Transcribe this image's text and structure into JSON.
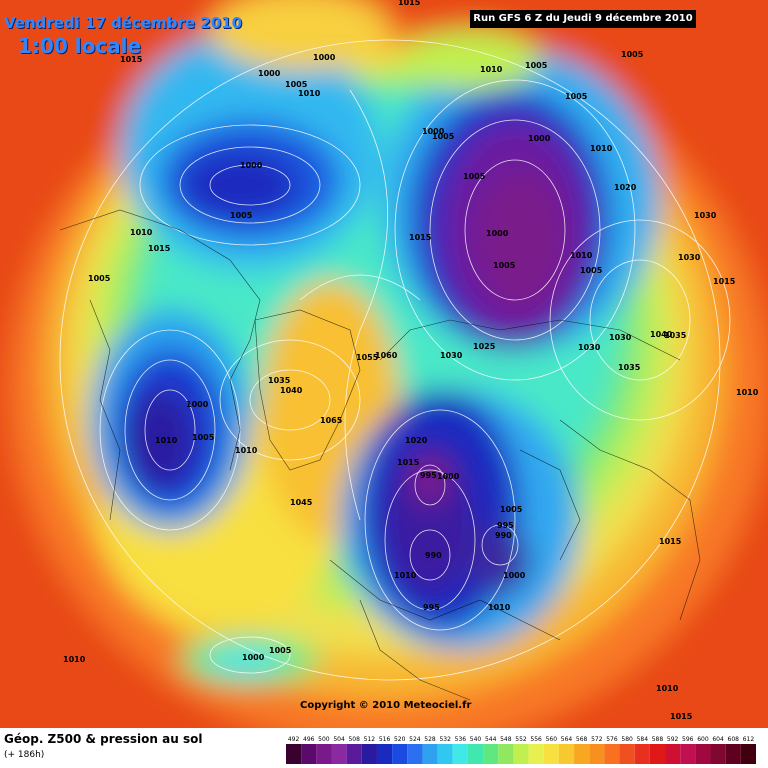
{
  "header": {
    "valid_date": "Vendredi 17 décembre 2010",
    "local_time": "1:00 locale",
    "run_info": "Run GFS 6 Z du Jeudi 9 décembre 2010"
  },
  "copyright": "Copyright © 2010 Meteociel.fr",
  "footer": {
    "title": "Géop. Z500 & pression au sol",
    "subtitle": "(+ 186h)"
  },
  "legend": {
    "labels": [
      "492",
      "496",
      "500",
      "504",
      "508",
      "512",
      "516",
      "520",
      "524",
      "528",
      "532",
      "536",
      "540",
      "544",
      "548",
      "552",
      "556",
      "560",
      "564",
      "568",
      "572",
      "576",
      "580",
      "584",
      "588",
      "592",
      "596",
      "600",
      "604",
      "608",
      "612"
    ],
    "colors": [
      "#3a0030",
      "#5a0a6a",
      "#7a1a8a",
      "#8a2aa0",
      "#5a1a9a",
      "#2a1aa0",
      "#1a2ac0",
      "#1a4ae0",
      "#2a70f0",
      "#30a0f0",
      "#30c8f0",
      "#40e8e8",
      "#40e8b0",
      "#60e880",
      "#90e860",
      "#c0f050",
      "#e8f050",
      "#f8e040",
      "#f8c830",
      "#f8a820",
      "#f89020",
      "#f87020",
      "#f05020",
      "#e83020",
      "#e01818",
      "#d01030",
      "#c01050",
      "#a00840",
      "#800830",
      "#600020",
      "#400010"
    ]
  },
  "pressure_labels": [
    {
      "text": "1015"
    },
    {
      "text": "1015"
    },
    {
      "text": "1000"
    },
    {
      "text": "1005"
    },
    {
      "text": "1010"
    },
    {
      "text": "1000"
    },
    {
      "text": "1010"
    },
    {
      "text": "1005"
    },
    {
      "text": "1005"
    },
    {
      "text": "1005"
    },
    {
      "text": "1000"
    },
    {
      "text": "1005"
    },
    {
      "text": "1010"
    },
    {
      "text": "1020"
    },
    {
      "text": "1000"
    },
    {
      "text": "1005"
    },
    {
      "text": "1010"
    },
    {
      "text": "1015"
    },
    {
      "text": "1005"
    },
    {
      "text": "1000"
    },
    {
      "text": "1010"
    },
    {
      "text": "1005"
    },
    {
      "text": "1015"
    },
    {
      "text": "1005"
    },
    {
      "text": "1000"
    },
    {
      "text": "1030"
    },
    {
      "text": "1030"
    },
    {
      "text": "1015"
    },
    {
      "text": "1035"
    },
    {
      "text": "1030"
    },
    {
      "text": "1035"
    },
    {
      "text": "1030"
    },
    {
      "text": "1060"
    },
    {
      "text": "1055"
    },
    {
      "text": "1035"
    },
    {
      "text": "1040"
    },
    {
      "text": "1065"
    },
    {
      "text": "1000"
    },
    {
      "text": "1005"
    },
    {
      "text": "1010"
    },
    {
      "text": "1010"
    },
    {
      "text": "1045"
    },
    {
      "text": "1020"
    },
    {
      "text": "1015"
    },
    {
      "text": "1000"
    },
    {
      "text": "995"
    },
    {
      "text": "1005"
    },
    {
      "text": "995"
    },
    {
      "text": "990"
    },
    {
      "text": "990"
    },
    {
      "text": "1010"
    },
    {
      "text": "1000"
    },
    {
      "text": "995"
    },
    {
      "text": "1010"
    },
    {
      "text": "1015"
    },
    {
      "text": "1010"
    },
    {
      "text": "1000"
    },
    {
      "text": "1005"
    },
    {
      "text": "1010"
    },
    {
      "text": "1015"
    },
    {
      "text": "1010"
    },
    {
      "text": "1030"
    },
    {
      "text": "1025"
    },
    {
      "text": "1005"
    },
    {
      "text": "1040"
    }
  ]
}
